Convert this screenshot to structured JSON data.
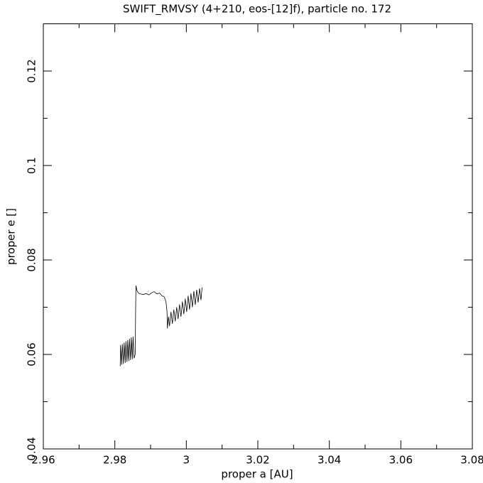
{
  "chart_data": {
    "type": "line",
    "title": "SWIFT_RMVSY (4+210, eos-[12]f), particle no. 172",
    "x_label": "proper a [AU]",
    "y_label": "proper e []",
    "xlim": [
      2.96,
      3.08
    ],
    "ylim": [
      0.04,
      0.13
    ],
    "xticks": [
      2.96,
      2.98,
      3,
      3.02,
      3.04,
      3.06,
      3.08
    ],
    "yticks": [
      0.04,
      0.06,
      0.08,
      0.1,
      0.12
    ],
    "xminorticks": [
      2.97,
      2.99,
      3.01,
      3.03,
      3.05,
      3.07
    ],
    "yminorticks": [
      0.05,
      0.07,
      0.09,
      0.11
    ],
    "color": "#000000",
    "x": [
      2.9815,
      2.9816,
      2.9819,
      2.9821,
      2.9824,
      2.9826,
      2.9829,
      2.9831,
      2.9834,
      2.9836,
      2.9839,
      2.9841,
      2.9844,
      2.9846,
      2.9849,
      2.9851,
      2.9854,
      2.9857,
      2.9858,
      2.9859,
      2.9862,
      2.9866,
      2.9872,
      2.988,
      2.9888,
      2.9895,
      2.9902,
      2.991,
      2.9918,
      2.9925,
      2.9932,
      2.9938,
      2.9943,
      2.9946,
      2.9947,
      2.995,
      2.9953,
      2.9957,
      2.9961,
      2.9965,
      2.9969,
      2.9973,
      2.9977,
      2.9981,
      2.9985,
      2.9989,
      2.9993,
      2.9997,
      3.0001,
      3.0005,
      3.0009,
      3.0013,
      3.0017,
      3.0021,
      3.0025,
      3.0029,
      3.0033,
      3.0037,
      3.0041,
      3.0044
    ],
    "y": [
      0.0575,
      0.062,
      0.0578,
      0.0622,
      0.058,
      0.0625,
      0.0582,
      0.0628,
      0.0584,
      0.063,
      0.0586,
      0.0633,
      0.0588,
      0.0636,
      0.059,
      0.0638,
      0.0592,
      0.06,
      0.068,
      0.0746,
      0.0735,
      0.073,
      0.0728,
      0.0727,
      0.0729,
      0.0726,
      0.073,
      0.0733,
      0.0728,
      0.073,
      0.0724,
      0.0722,
      0.0712,
      0.069,
      0.0655,
      0.068,
      0.066,
      0.069,
      0.0665,
      0.0695,
      0.067,
      0.07,
      0.0675,
      0.0706,
      0.068,
      0.0712,
      0.0685,
      0.0718,
      0.069,
      0.0724,
      0.0695,
      0.0729,
      0.07,
      0.0734,
      0.0705,
      0.0737,
      0.071,
      0.074,
      0.0715,
      0.0742
    ]
  }
}
